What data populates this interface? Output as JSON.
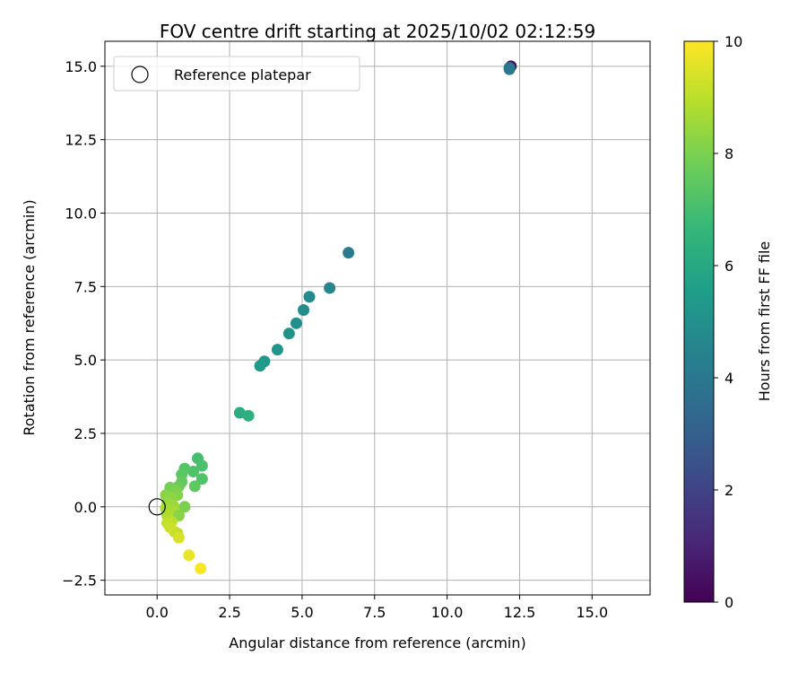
{
  "chart_data": {
    "type": "scatter",
    "title": "FOV centre drift starting at 2025/10/02 02:12:59",
    "xlabel": "Angular distance from reference (arcmin)",
    "ylabel": "Rotation from reference (arcmin)",
    "xlim": [
      -1.8,
      17.0
    ],
    "ylim": [
      -3.0,
      15.85
    ],
    "xticks": [
      0.0,
      2.5,
      5.0,
      7.5,
      10.0,
      12.5,
      15.0
    ],
    "yticks": [
      -2.5,
      0.0,
      2.5,
      5.0,
      7.5,
      10.0,
      12.5,
      15.0
    ],
    "xtick_labels": [
      "0.0",
      "2.5",
      "5.0",
      "7.5",
      "10.0",
      "12.5",
      "15.0"
    ],
    "ytick_labels": [
      "−2.5",
      "0.0",
      "2.5",
      "5.0",
      "7.5",
      "10.0",
      "12.5",
      "15.0"
    ],
    "grid": true,
    "legend": {
      "position": "upper-left",
      "entries": [
        "Reference platepar"
      ]
    },
    "reference_point": {
      "x": 0.0,
      "y": 0.0
    },
    "colorbar": {
      "label": "Hours from first FF file",
      "min": 0,
      "max": 10,
      "ticks": [
        0,
        2,
        4,
        6,
        8,
        10
      ],
      "tick_labels": [
        "0",
        "2",
        "4",
        "6",
        "8",
        "10"
      ],
      "colormap": "viridis"
    },
    "points": [
      {
        "x": 12.2,
        "y": 15.0,
        "h": 0.2
      },
      {
        "x": 12.15,
        "y": 14.95,
        "h": 3.8
      },
      {
        "x": 12.15,
        "y": 14.9,
        "h": 4.0
      },
      {
        "x": 6.6,
        "y": 8.65,
        "h": 4.2
      },
      {
        "x": 5.95,
        "y": 7.45,
        "h": 4.6
      },
      {
        "x": 5.25,
        "y": 7.15,
        "h": 4.8
      },
      {
        "x": 5.05,
        "y": 6.7,
        "h": 4.9
      },
      {
        "x": 4.8,
        "y": 6.25,
        "h": 5.0
      },
      {
        "x": 4.55,
        "y": 5.9,
        "h": 5.1
      },
      {
        "x": 4.15,
        "y": 5.35,
        "h": 5.2
      },
      {
        "x": 3.7,
        "y": 4.95,
        "h": 5.3
      },
      {
        "x": 3.55,
        "y": 4.8,
        "h": 5.4
      },
      {
        "x": 2.85,
        "y": 3.2,
        "h": 6.2
      },
      {
        "x": 3.15,
        "y": 3.1,
        "h": 6.3
      },
      {
        "x": 1.4,
        "y": 1.65,
        "h": 7.0
      },
      {
        "x": 1.55,
        "y": 1.4,
        "h": 7.1
      },
      {
        "x": 1.25,
        "y": 1.2,
        "h": 7.2
      },
      {
        "x": 0.95,
        "y": 1.3,
        "h": 7.3
      },
      {
        "x": 0.85,
        "y": 1.1,
        "h": 7.4
      },
      {
        "x": 1.55,
        "y": 0.95,
        "h": 7.2
      },
      {
        "x": 1.3,
        "y": 0.7,
        "h": 7.5
      },
      {
        "x": 0.85,
        "y": 0.85,
        "h": 7.6
      },
      {
        "x": 0.75,
        "y": 0.7,
        "h": 7.7
      },
      {
        "x": 0.45,
        "y": 0.65,
        "h": 7.9
      },
      {
        "x": 0.65,
        "y": 0.55,
        "h": 8.0
      },
      {
        "x": 0.7,
        "y": 0.4,
        "h": 8.1
      },
      {
        "x": 0.3,
        "y": 0.4,
        "h": 8.2
      },
      {
        "x": 0.5,
        "y": 0.3,
        "h": 8.3
      },
      {
        "x": 0.35,
        "y": 0.15,
        "h": 8.4
      },
      {
        "x": 0.55,
        "y": 0.05,
        "h": 8.5
      },
      {
        "x": 0.95,
        "y": 0.0,
        "h": 8.0
      },
      {
        "x": 0.3,
        "y": -0.05,
        "h": 8.6
      },
      {
        "x": 0.6,
        "y": -0.15,
        "h": 8.7
      },
      {
        "x": 0.75,
        "y": -0.3,
        "h": 8.2
      },
      {
        "x": 0.35,
        "y": -0.3,
        "h": 8.8
      },
      {
        "x": 0.5,
        "y": -0.5,
        "h": 9.0
      },
      {
        "x": 0.35,
        "y": -0.55,
        "h": 9.1
      },
      {
        "x": 0.45,
        "y": -0.7,
        "h": 9.2
      },
      {
        "x": 0.6,
        "y": -0.85,
        "h": 9.3
      },
      {
        "x": 0.7,
        "y": -0.9,
        "h": 9.1
      },
      {
        "x": 0.75,
        "y": -1.05,
        "h": 9.4
      },
      {
        "x": 1.1,
        "y": -1.65,
        "h": 9.7
      },
      {
        "x": 1.5,
        "y": -2.1,
        "h": 9.9
      }
    ]
  }
}
